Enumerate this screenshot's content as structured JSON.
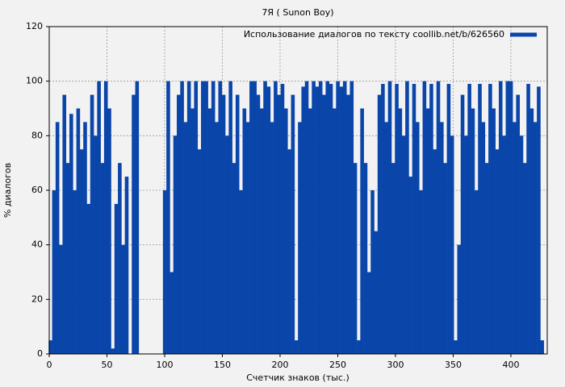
{
  "chart_data": {
    "type": "bar",
    "title": "7Я ( Sunon Boy)",
    "x_label": "Счетчик знаков (тыс.)",
    "y_label": "% диалогов",
    "series": [
      {
        "name": "Использование диалогов по тексту coollib.net/b/626560",
        "color": "#0a45aa",
        "values": [
          5,
          60,
          85,
          40,
          95,
          70,
          88,
          60,
          90,
          75,
          85,
          55,
          95,
          80,
          100,
          70,
          100,
          90,
          2,
          55,
          70,
          40,
          65,
          0,
          95,
          100,
          0,
          0,
          0,
          0,
          0,
          0,
          0,
          60,
          100,
          30,
          80,
          95,
          100,
          85,
          100,
          90,
          100,
          75,
          100,
          100,
          90,
          100,
          85,
          100,
          95,
          80,
          100,
          70,
          95,
          60,
          90,
          85,
          100,
          100,
          95,
          90,
          100,
          98,
          85,
          100,
          95,
          99,
          90,
          75,
          95,
          5,
          85,
          98,
          100,
          90,
          100,
          98,
          100,
          95,
          100,
          99,
          90,
          100,
          98,
          100,
          95,
          100,
          70,
          5,
          90,
          70,
          30,
          60,
          45,
          95,
          99,
          85,
          100,
          70,
          99,
          90,
          80,
          100,
          65,
          99,
          85,
          60,
          100,
          90,
          99,
          75,
          100,
          85,
          70,
          99,
          80,
          5,
          40,
          95,
          80,
          99,
          90,
          60,
          99,
          85,
          70,
          99,
          90,
          75,
          100,
          80,
          100,
          100,
          85,
          95,
          80,
          70,
          99,
          90,
          85,
          98,
          5
        ]
      }
    ],
    "x": [
      1,
      4,
      7,
      10,
      13,
      16,
      19,
      22,
      25,
      28,
      31,
      34,
      37,
      40,
      43,
      46,
      49,
      52,
      55,
      58,
      61,
      64,
      67,
      70,
      73,
      76,
      79,
      82,
      85,
      88,
      91,
      94,
      97,
      100,
      103,
      106,
      109,
      112,
      115,
      118,
      121,
      124,
      127,
      130,
      133,
      136,
      139,
      142,
      145,
      148,
      151,
      154,
      157,
      160,
      163,
      166,
      169,
      172,
      175,
      178,
      181,
      184,
      187,
      190,
      193,
      196,
      199,
      202,
      205,
      208,
      211,
      214,
      217,
      220,
      223,
      226,
      229,
      232,
      235,
      238,
      241,
      244,
      247,
      250,
      253,
      256,
      259,
      262,
      265,
      268,
      271,
      274,
      277,
      280,
      283,
      286,
      289,
      292,
      295,
      298,
      301,
      304,
      307,
      310,
      313,
      316,
      319,
      322,
      325,
      328,
      331,
      334,
      337,
      340,
      343,
      346,
      349,
      352,
      355,
      358,
      361,
      364,
      367,
      370,
      373,
      376,
      379,
      382,
      385,
      388,
      391,
      394,
      397,
      400,
      403,
      406,
      409,
      412,
      415,
      418,
      421,
      424,
      427
    ],
    "xlim": [
      0,
      431.5
    ],
    "xticks": [
      0,
      50,
      100,
      150,
      200,
      250,
      300,
      350,
      400
    ],
    "ylim": [
      0,
      120
    ],
    "yticks": [
      0,
      20,
      40,
      60,
      80,
      100,
      120
    ],
    "grid": true,
    "legend": "upper right"
  }
}
